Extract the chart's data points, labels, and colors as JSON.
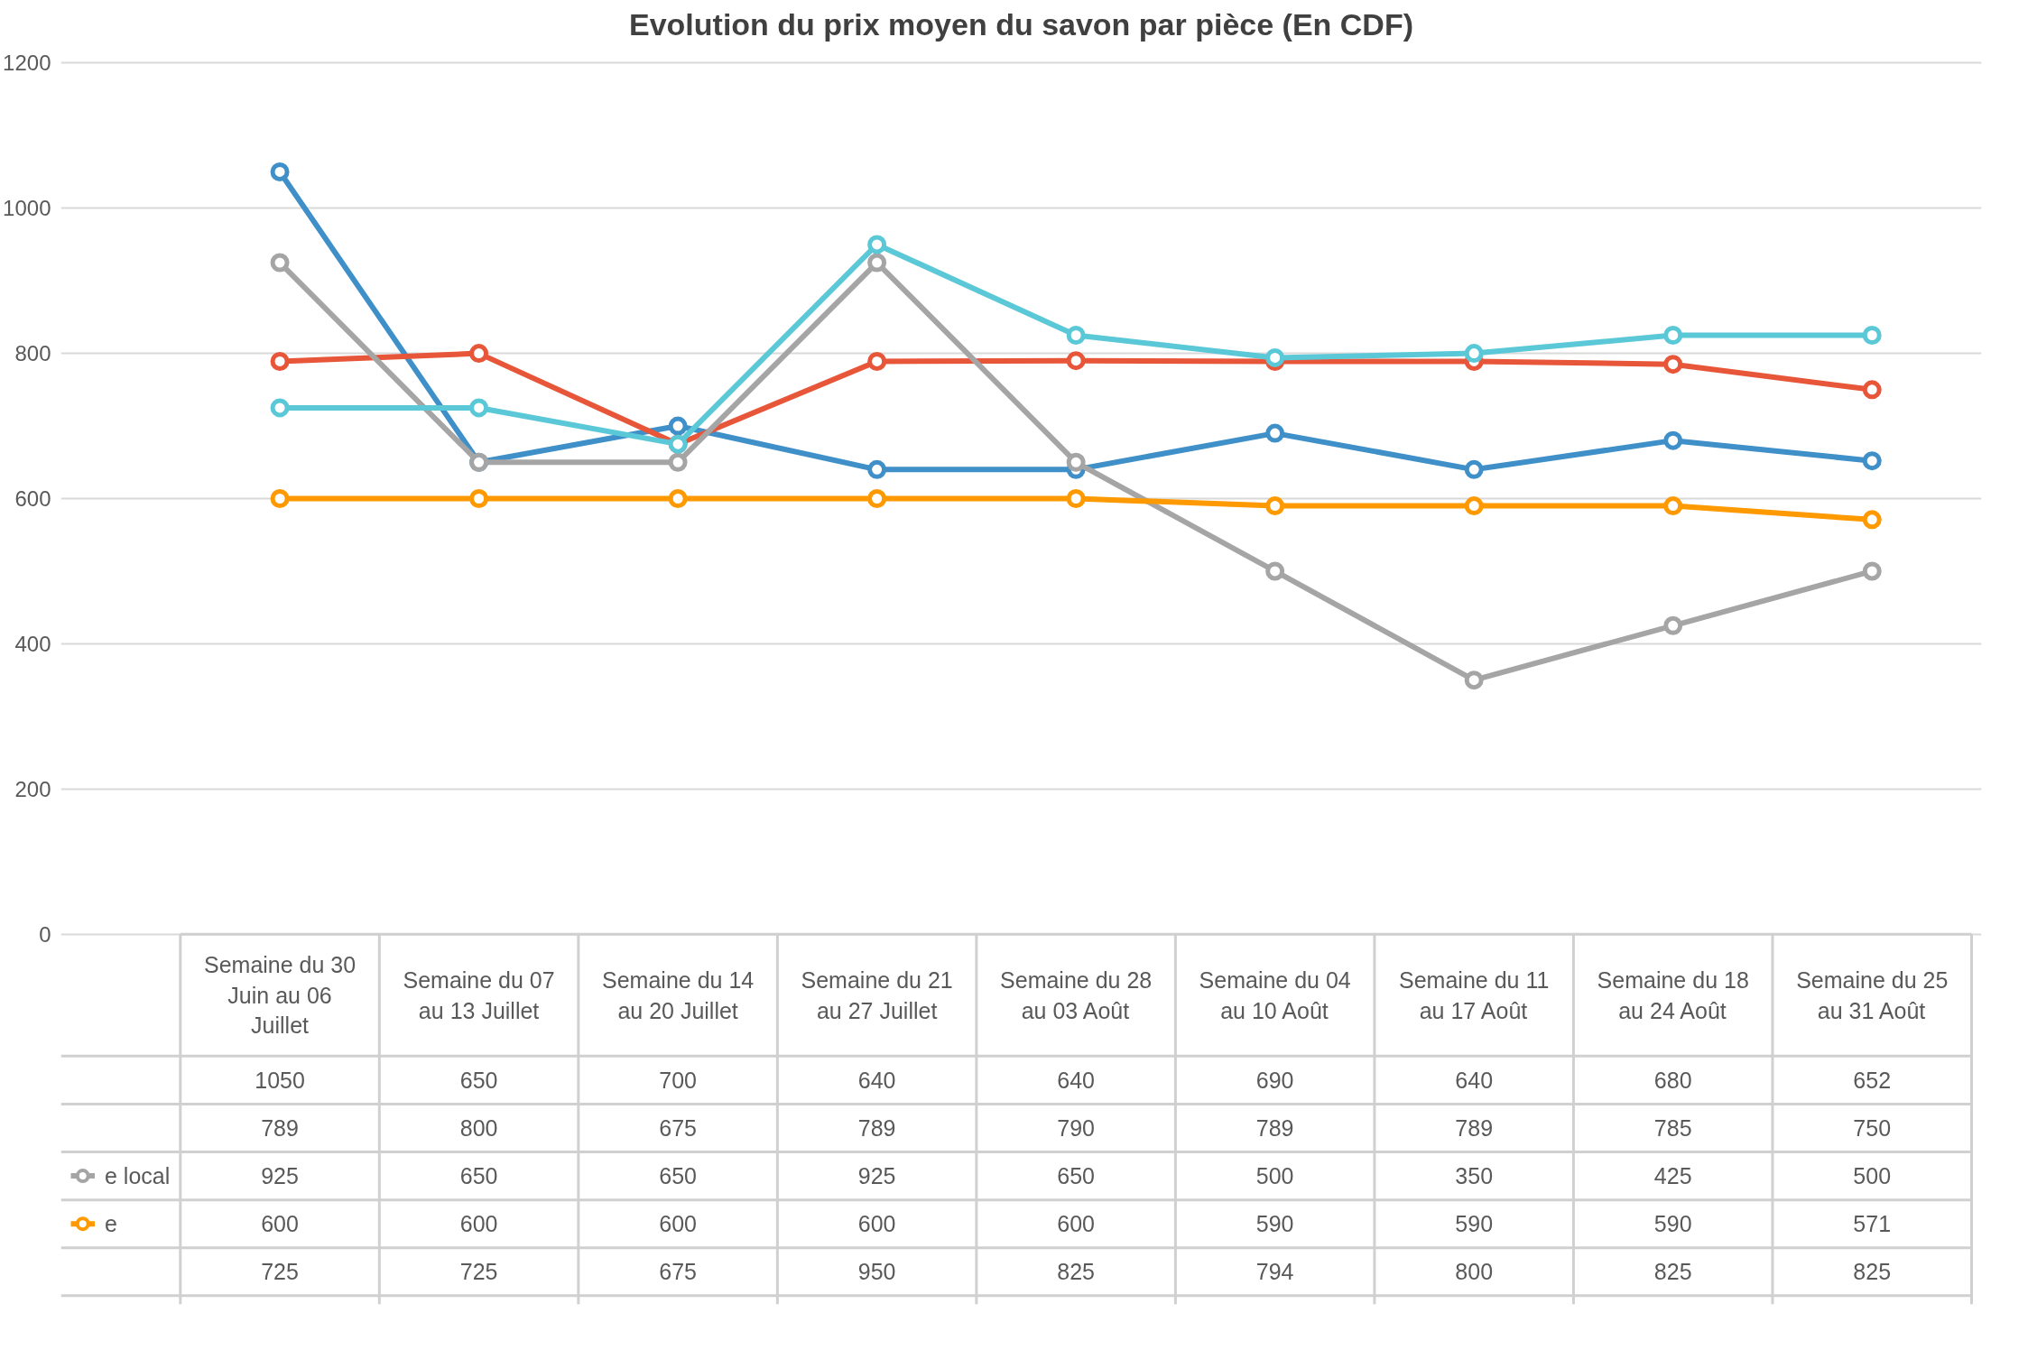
{
  "chart_data": {
    "type": "line",
    "title": "Evolution du prix moyen du savon par pièce (En CDF)",
    "categories": [
      "Semaine du 30 Juin au 06 Juillet",
      "Semaine du 07 au 13 Juillet",
      "Semaine du 14 au 20 Juillet",
      "Semaine du 21 au 27 Juillet",
      "Semaine du 28 au 03 Août",
      "Semaine du 04 au 10 Août",
      "Semaine du 11 au 17 Août",
      "Semaine du 18 au 24 Août",
      "Semaine du 25 au 31 Août"
    ],
    "series": [
      {
        "color": "#3f8fc8",
        "values": [
          1050,
          650,
          700,
          640,
          640,
          690,
          640,
          680,
          652
        ]
      },
      {
        "color": "#e8563a",
        "values": [
          789,
          800,
          675,
          789,
          790,
          789,
          789,
          785,
          750
        ]
      },
      {
        "name": "e local",
        "color": "#a5a5a5",
        "values": [
          925,
          650,
          650,
          925,
          650,
          500,
          350,
          425,
          500
        ]
      },
      {
        "name": "e",
        "color": "#ff9900",
        "values": [
          600,
          600,
          600,
          600,
          600,
          590,
          590,
          590,
          571
        ]
      },
      {
        "color": "#5bc8d8",
        "values": [
          725,
          725,
          675,
          950,
          825,
          794,
          800,
          825,
          825
        ]
      }
    ],
    "ylim": [
      0,
      1200
    ],
    "yticks": [
      0,
      200,
      400,
      600,
      800,
      1000,
      1200
    ],
    "grid": "y",
    "legend": "bottom left",
    "marker": "circle",
    "line_style": "solid",
    "data_labels": true
  }
}
